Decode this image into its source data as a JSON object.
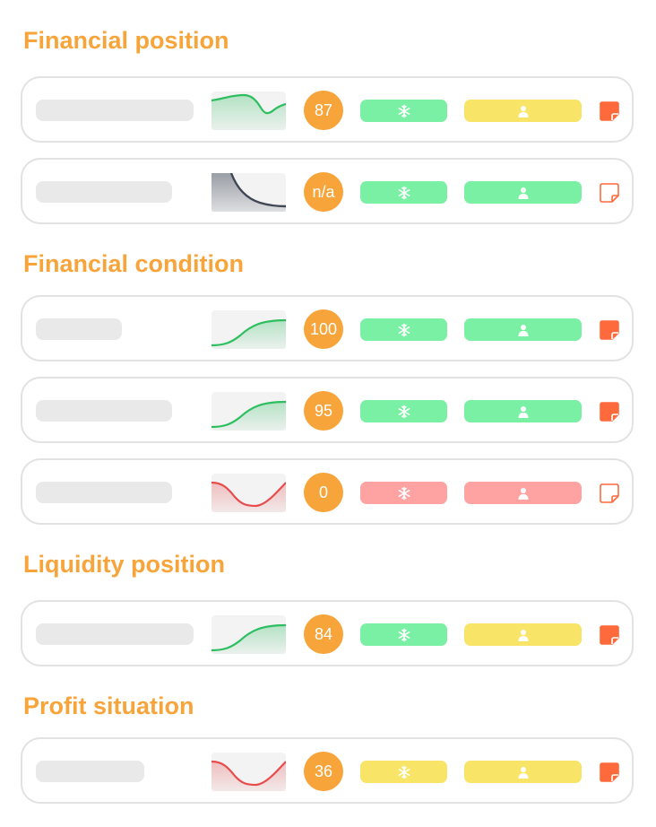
{
  "sections": [
    {
      "title": "Financial position",
      "rows": [
        {
          "score": "87",
          "trend": "wavy-green",
          "status": [
            "green",
            "yellow"
          ],
          "note": "filled"
        },
        {
          "score": "n/a",
          "trend": "decay-gray",
          "status": [
            "green",
            "green"
          ],
          "note": "outline"
        }
      ]
    },
    {
      "title": "Financial condition",
      "rows": [
        {
          "score": "100",
          "trend": "rise-green",
          "status": [
            "green",
            "green"
          ],
          "note": "filled"
        },
        {
          "score": "95",
          "trend": "rise-green",
          "status": [
            "green",
            "green"
          ],
          "note": "filled"
        },
        {
          "score": "0",
          "trend": "dip-red",
          "status": [
            "red",
            "red"
          ],
          "note": "outline"
        }
      ]
    },
    {
      "title": "Liquidity position",
      "rows": [
        {
          "score": "84",
          "trend": "rise-green",
          "status": [
            "green",
            "yellow"
          ],
          "note": "filled"
        }
      ]
    },
    {
      "title": "Profit situation",
      "rows": [
        {
          "score": "36",
          "trend": "dip-red",
          "status": [
            "yellow",
            "yellow"
          ],
          "note": "filled"
        }
      ]
    }
  ],
  "icons": {
    "status_a": "snowflake-icon",
    "status_b": "person-icon",
    "note": "sticky-note-icon"
  },
  "colors": {
    "accent": "#F7A43A",
    "status_green": "#7AF0A4",
    "status_yellow": "#F8E466",
    "status_red": "#FFA2A2",
    "note": "#FF6A3D",
    "trend_green": "#2DBE60",
    "trend_red": "#E84C4C",
    "trend_gray": "#3F4756"
  }
}
